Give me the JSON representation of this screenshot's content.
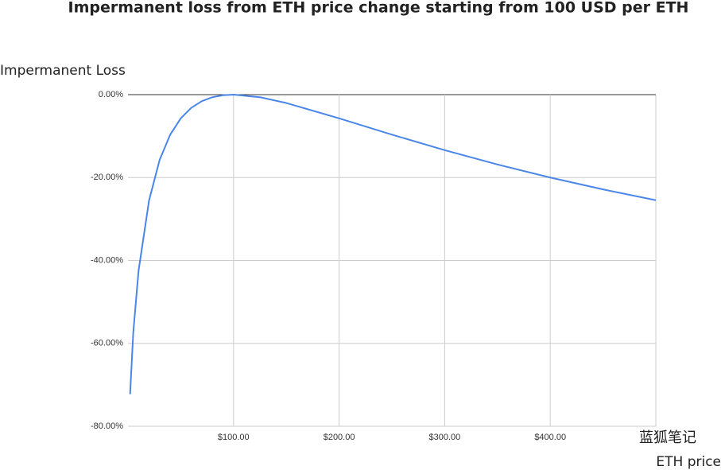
{
  "chart_data": {
    "type": "line",
    "title": "Impermanent loss from ETH price change starting from 100 USD per ETH",
    "y_label": "Impermanent Loss",
    "x_label": "ETH price",
    "watermark": "蓝狐笔记",
    "series": [
      {
        "name": "Impermanent Loss",
        "color": "#4a86e8",
        "x": [
          2,
          5,
          10,
          20,
          30,
          40,
          50,
          60,
          70,
          80,
          90,
          100,
          125,
          150,
          200,
          250,
          300,
          350,
          400,
          450,
          500
        ],
        "values": [
          -72.27,
          -57.41,
          -42.51,
          -25.46,
          -15.73,
          -9.65,
          -5.72,
          -3.18,
          -1.57,
          -0.62,
          -0.14,
          0,
          -0.62,
          -2.02,
          -5.72,
          -9.65,
          -13.4,
          -16.85,
          -20.0,
          -22.86,
          -25.46
        ]
      }
    ],
    "xlim": [
      0,
      500
    ],
    "xticks": [
      {
        "value": 100,
        "label": "$100.00"
      },
      {
        "value": 200,
        "label": "$200.00"
      },
      {
        "value": 300,
        "label": "$300.00"
      },
      {
        "value": 400,
        "label": "$400.00"
      }
    ],
    "ylim": [
      -80,
      0
    ],
    "yticks": [
      {
        "value": 0,
        "label": "0.00%"
      },
      {
        "value": -20,
        "label": "-20.00%"
      },
      {
        "value": -40,
        "label": "-40.00%"
      },
      {
        "value": -60,
        "label": "-60.00%"
      },
      {
        "value": -80,
        "label": "-80.00%"
      }
    ],
    "grid": true
  }
}
